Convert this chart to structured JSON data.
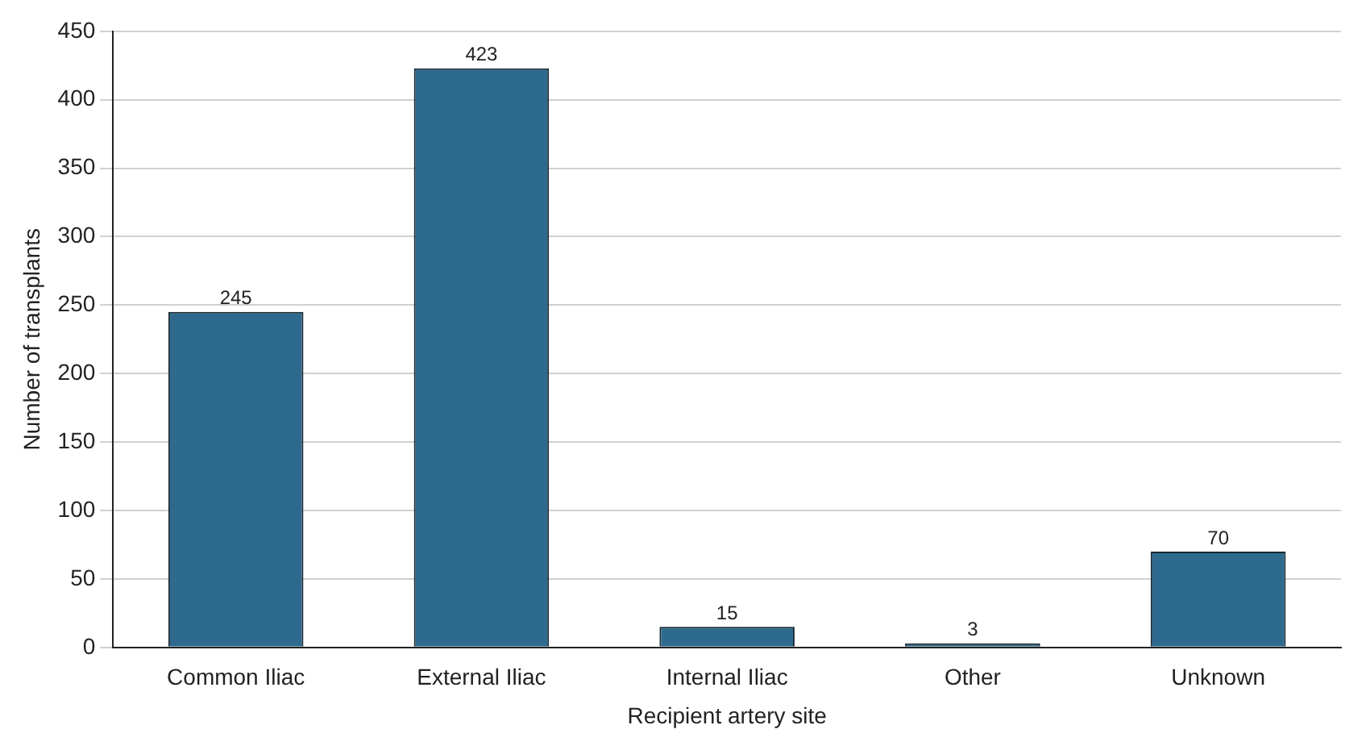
{
  "chart_data": {
    "type": "bar",
    "xlabel": "Recipient artery site",
    "ylabel": "Number of transplants",
    "categories": [
      "Common Iliac",
      "External Iliac",
      "Internal Iliac",
      "Other",
      "Unknown"
    ],
    "values": [
      245,
      423,
      15,
      3,
      70
    ],
    "color": "#2e6a8e",
    "ylim": [
      0,
      450
    ],
    "yticks": [
      0,
      50,
      100,
      150,
      200,
      250,
      300,
      350,
      400,
      450
    ],
    "grid": "y",
    "data_labels": true,
    "legend": false
  }
}
